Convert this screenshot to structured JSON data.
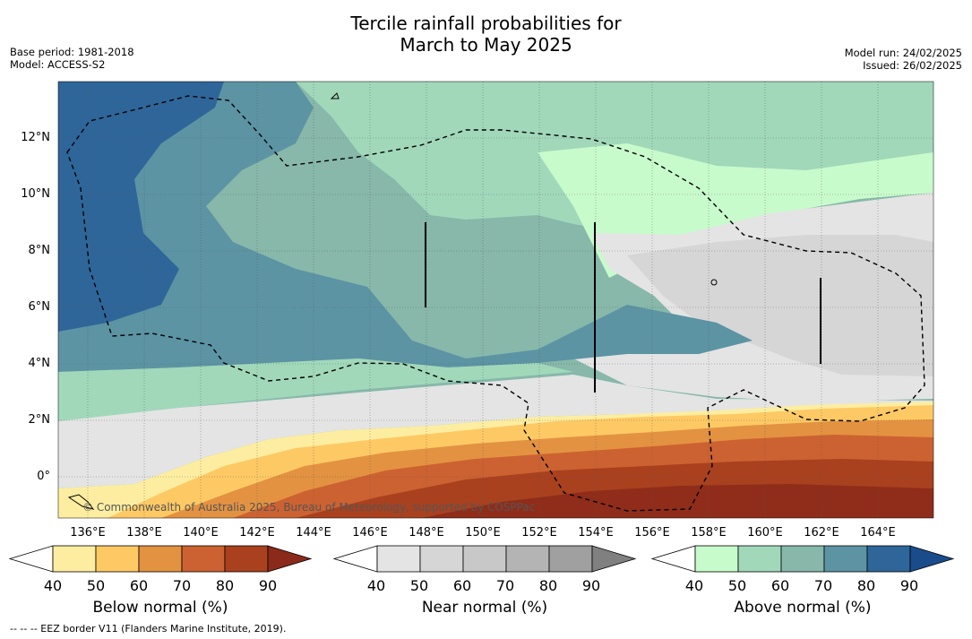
{
  "title_line1": "Tercile rainfall probabilities for",
  "title_line2": "March to May 2025",
  "base_period": "Base period: 1981-2018",
  "model": "Model: ACCESS-S2",
  "model_run": "Model run: 24/02/2025",
  "issued": "Issued: 26/02/2025",
  "x_ticks": [
    "136°E",
    "138°E",
    "140°E",
    "142°E",
    "144°E",
    "146°E",
    "148°E",
    "150°E",
    "152°E",
    "154°E",
    "156°E",
    "158°E",
    "160°E",
    "162°E",
    "164°E"
  ],
  "y_ticks": [
    "12°N",
    "10°N",
    "8°N",
    "6°N",
    "4°N",
    "2°N",
    "0°"
  ],
  "copyright": "© Commonwealth of Australia 2025, Bureau of Meteorology, supported by COSPPac",
  "colorbars": [
    {
      "title": "Below normal (%)",
      "labels": [
        "40",
        "50",
        "60",
        "70",
        "80",
        "90"
      ],
      "colors": [
        "#ffffff",
        "#fdeda0",
        "#fdc964",
        "#e39241",
        "#cc6231",
        "#a9411f",
        "#8b2a1a"
      ]
    },
    {
      "title": "Near normal (%)",
      "labels": [
        "40",
        "50",
        "60",
        "70",
        "80",
        "90"
      ],
      "colors": [
        "#ffffff",
        "#e4e4e4",
        "#d6d6d6",
        "#c8c8c8",
        "#b4b4b4",
        "#a0a0a0",
        "#808080"
      ]
    },
    {
      "title": "Above normal (%)",
      "labels": [
        "40",
        "50",
        "60",
        "70",
        "80",
        "90"
      ],
      "colors": [
        "#ffffff",
        "#c8fbcb",
        "#a1d8ba",
        "#87b8aa",
        "#5c94a4",
        "#2f6699",
        "#1a4c8c"
      ]
    }
  ],
  "footnote": "--  --  -- EEZ border V11 (Flanders Marine Institute, 2019)."
}
